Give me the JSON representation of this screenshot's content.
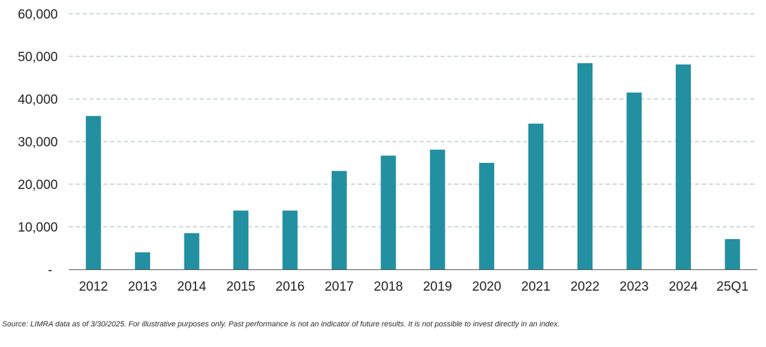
{
  "chart_data": {
    "type": "bar",
    "categories": [
      "2012",
      "2013",
      "2014",
      "2015",
      "2016",
      "2017",
      "2018",
      "2019",
      "2020",
      "2021",
      "2022",
      "2023",
      "2024",
      "25Q1"
    ],
    "values": [
      36000,
      4000,
      8500,
      13800,
      13800,
      23100,
      26700,
      28100,
      25000,
      34200,
      48400,
      41500,
      48100,
      7100
    ],
    "title": "",
    "xlabel": "",
    "ylabel": "",
    "ylim": [
      0,
      60000
    ],
    "y_ticks": [
      0,
      10000,
      20000,
      30000,
      40000,
      50000,
      60000
    ],
    "y_tick_labels": [
      "-",
      "10,000",
      "20,000",
      "30,000",
      "40,000",
      "50,000",
      "60,000"
    ],
    "grid": "horizontal-dashed",
    "legend": "none",
    "bar_color": "#2290a1",
    "grid_color": "#9fb6bb",
    "axis_color": "#555555"
  },
  "footnote": "Source: LIMRA data as of 3/30/2025. For illustrative purposes only. Past performance is not an indicator of future results. It is not possible to invest directly in an index."
}
